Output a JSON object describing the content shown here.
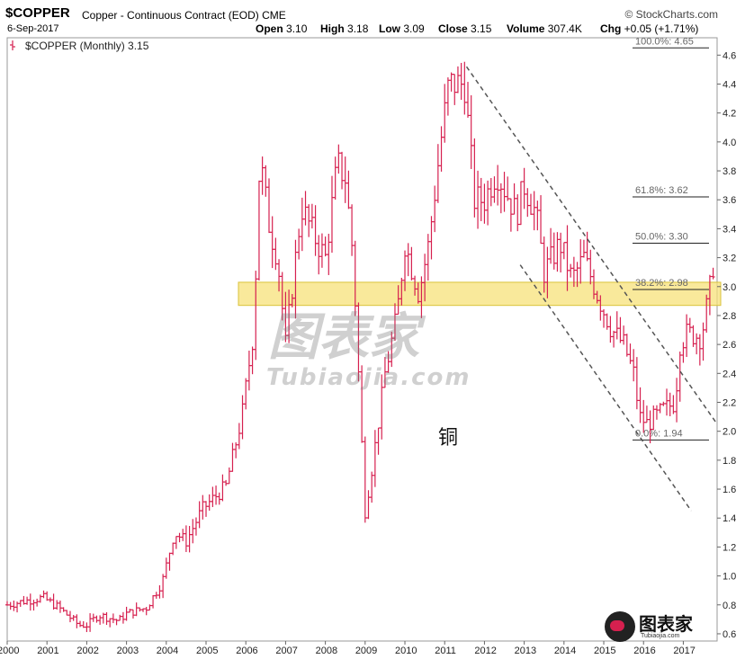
{
  "header": {
    "symbol": "$COPPER",
    "description": "Copper - Continuous Contract (EOD) CME",
    "date": "6-Sep-2017",
    "brand": "© StockCharts.com",
    "open_label": "Open",
    "open": "3.10",
    "high_label": "High",
    "high": "3.18",
    "low_label": "Low",
    "low": "3.09",
    "close_label": "Close",
    "close": "3.15",
    "volume_label": "Volume",
    "volume": "307.4K",
    "chg_label": "Chg",
    "chg": "+0.05 (+1.71%)"
  },
  "legend": {
    "label": "$COPPER (Monthly) 3.15"
  },
  "annotation": {
    "text": "铜"
  },
  "watermark": {
    "main": "图表家",
    "sub": "Tubiaojia.com",
    "logo": "图表家",
    "logo_sub": "Tubiaojia.com"
  },
  "colors": {
    "bar": "#d6204f",
    "band": "#f7e27a",
    "band_border": "#d9c23a",
    "channel": "#555555"
  },
  "fib_levels": [
    {
      "label": "100.0%: 4.65",
      "value": 4.65
    },
    {
      "label": "61.8%: 3.62",
      "value": 3.62
    },
    {
      "label": "50.0%: 3.30",
      "value": 3.3
    },
    {
      "label": "38.2%: 2.98",
      "value": 2.98
    },
    {
      "label": "0.0%: 1.94",
      "value": 1.94
    }
  ],
  "support_band": {
    "from": 2.87,
    "to": 3.03
  },
  "chart_data": {
    "type": "ohlc",
    "title": "$COPPER (Monthly) 3.15",
    "y_ticks": [
      "0.6",
      "0.8",
      "1.0",
      "1.2",
      "1.4",
      "1.6",
      "1.8",
      "2.0",
      "2.2",
      "2.4",
      "2.6",
      "2.8",
      "3.0",
      "3.2",
      "3.4",
      "3.6",
      "3.8",
      "4.0",
      "4.2",
      "4.4",
      "4.6"
    ],
    "x_ticks": [
      "2000",
      "2001",
      "2002",
      "2003",
      "2004",
      "2005",
      "2006",
      "2007",
      "2008",
      "2009",
      "2010",
      "2011",
      "2012",
      "2013",
      "2014",
      "2015",
      "2016",
      "2017"
    ],
    "ylim": [
      0.55,
      4.72
    ],
    "xlim": [
      2000.0,
      2017.85
    ],
    "anchors": [
      [
        2000.0,
        0.8
      ],
      [
        2000.5,
        0.83
      ],
      [
        2000.9,
        0.85
      ],
      [
        2001.3,
        0.78
      ],
      [
        2001.8,
        0.66
      ],
      [
        2002.0,
        0.66
      ],
      [
        2002.3,
        0.73
      ],
      [
        2002.8,
        0.69
      ],
      [
        2003.0,
        0.74
      ],
      [
        2003.5,
        0.78
      ],
      [
        2003.9,
        0.96
      ],
      [
        2004.2,
        1.3
      ],
      [
        2004.5,
        1.24
      ],
      [
        2004.9,
        1.46
      ],
      [
        2005.5,
        1.62
      ],
      [
        2005.9,
        2.1
      ],
      [
        2006.2,
        2.7
      ],
      [
        2006.35,
        3.9
      ],
      [
        2006.6,
        3.4
      ],
      [
        2006.8,
        3.2
      ],
      [
        2007.0,
        2.6
      ],
      [
        2007.4,
        3.55
      ],
      [
        2007.8,
        3.3
      ],
      [
        2008.0,
        3.2
      ],
      [
        2008.3,
        3.85
      ],
      [
        2008.5,
        3.75
      ],
      [
        2008.7,
        3.2
      ],
      [
        2008.9,
        2.0
      ],
      [
        2009.0,
        1.45
      ],
      [
        2009.2,
        1.8
      ],
      [
        2009.5,
        2.4
      ],
      [
        2009.8,
        2.8
      ],
      [
        2010.0,
        3.3
      ],
      [
        2010.35,
        2.95
      ],
      [
        2010.6,
        3.3
      ],
      [
        2010.9,
        4.0
      ],
      [
        2011.1,
        4.4
      ],
      [
        2011.5,
        4.4
      ],
      [
        2011.75,
        3.6
      ],
      [
        2012.0,
        3.6
      ],
      [
        2012.3,
        3.8
      ],
      [
        2012.8,
        3.5
      ],
      [
        2013.0,
        3.7
      ],
      [
        2013.3,
        3.5
      ],
      [
        2013.5,
        3.1
      ],
      [
        2013.9,
        3.3
      ],
      [
        2014.2,
        3.05
      ],
      [
        2014.5,
        3.2
      ],
      [
        2014.9,
        2.9
      ],
      [
        2015.2,
        2.7
      ],
      [
        2015.5,
        2.6
      ],
      [
        2015.75,
        2.4
      ],
      [
        2015.9,
        2.1
      ],
      [
        2016.1,
        2.05
      ],
      [
        2016.5,
        2.15
      ],
      [
        2016.8,
        2.2
      ],
      [
        2016.9,
        2.6
      ],
      [
        2017.1,
        2.68
      ],
      [
        2017.45,
        2.65
      ],
      [
        2017.65,
        2.95
      ],
      [
        2017.75,
        3.15
      ]
    ],
    "channel_lines": [
      {
        "x1": 2011.55,
        "y1": 4.52,
        "x2": 2017.85,
        "y2": 2.05
      },
      {
        "x1": 2012.9,
        "y1": 3.15,
        "x2": 2017.2,
        "y2": 1.45
      }
    ]
  }
}
